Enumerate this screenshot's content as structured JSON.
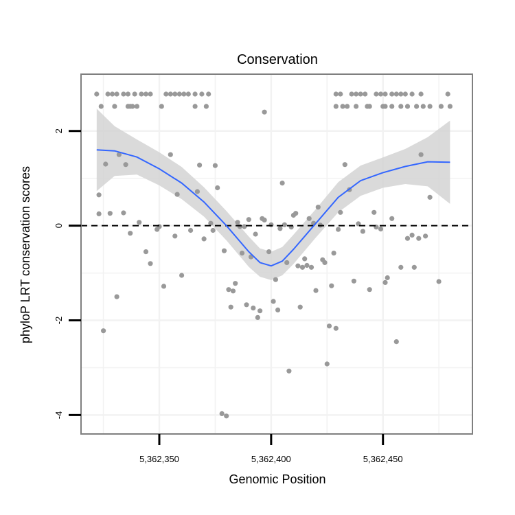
{
  "chart_data": {
    "type": "scatter",
    "title": "Conservation",
    "xlabel": "Genomic Position",
    "ylabel": "phyloP LRT conservation scores",
    "xlim": [
      5362315,
      5362490
    ],
    "ylim": [
      -4.4,
      3.2
    ],
    "x_ticks": [
      5362350,
      5362400,
      5362450
    ],
    "x_tick_labels": [
      "5,362,350",
      "5,362,400",
      "5,362,450"
    ],
    "y_ticks": [
      -4,
      -2,
      0,
      2
    ],
    "y_tick_labels": [
      "-4",
      "-2",
      "0",
      "2"
    ],
    "x_minor_grid": [
      5362325,
      5362375,
      5362425,
      5362475
    ],
    "y_minor_grid": [
      -3,
      -1,
      1
    ],
    "grid": true,
    "reference_line": {
      "y": 0,
      "style": "dashed",
      "color": "#000000"
    },
    "colors": {
      "points": "#999999",
      "smooth_line": "#3366ff",
      "ribbon": "#d4d4d4",
      "panel_border": "#7f7f7f",
      "grid": "#f2f2f2"
    },
    "series": [
      {
        "type": "scatter",
        "points": [
          [
            5362322,
            2.78
          ],
          [
            5362327,
            2.78
          ],
          [
            5362329,
            2.78
          ],
          [
            5362331,
            2.78
          ],
          [
            5362334,
            2.78
          ],
          [
            5362336,
            2.78
          ],
          [
            5362339,
            2.78
          ],
          [
            5362342,
            2.78
          ],
          [
            5362344,
            2.78
          ],
          [
            5362346,
            2.78
          ],
          [
            5362353,
            2.78
          ],
          [
            5362355,
            2.78
          ],
          [
            5362357,
            2.78
          ],
          [
            5362359,
            2.78
          ],
          [
            5362361,
            2.78
          ],
          [
            5362363,
            2.78
          ],
          [
            5362366,
            2.78
          ],
          [
            5362369,
            2.78
          ],
          [
            5362372,
            2.78
          ],
          [
            5362324,
            2.52
          ],
          [
            5362330,
            2.52
          ],
          [
            5362336,
            2.52
          ],
          [
            5362337,
            2.52
          ],
          [
            5362338,
            2.52
          ],
          [
            5362340,
            2.52
          ],
          [
            5362351,
            2.52
          ],
          [
            5362366,
            2.52
          ],
          [
            5362371,
            2.52
          ],
          [
            5362429,
            2.78
          ],
          [
            5362431,
            2.78
          ],
          [
            5362436,
            2.78
          ],
          [
            5362438,
            2.78
          ],
          [
            5362440,
            2.78
          ],
          [
            5362442,
            2.78
          ],
          [
            5362447,
            2.78
          ],
          [
            5362449,
            2.78
          ],
          [
            5362451,
            2.78
          ],
          [
            5362454,
            2.78
          ],
          [
            5362456,
            2.78
          ],
          [
            5362458,
            2.78
          ],
          [
            5362460,
            2.78
          ],
          [
            5362463,
            2.78
          ],
          [
            5362467,
            2.78
          ],
          [
            5362479,
            2.78
          ],
          [
            5362429,
            2.52
          ],
          [
            5362432,
            2.52
          ],
          [
            5362434,
            2.52
          ],
          [
            5362438,
            2.52
          ],
          [
            5362443,
            2.52
          ],
          [
            5362444,
            2.52
          ],
          [
            5362450,
            2.52
          ],
          [
            5362451,
            2.52
          ],
          [
            5362454,
            2.52
          ],
          [
            5362458,
            2.52
          ],
          [
            5362461,
            2.52
          ],
          [
            5362465,
            2.52
          ],
          [
            5362468,
            2.52
          ],
          [
            5362471,
            2.52
          ],
          [
            5362476,
            2.52
          ],
          [
            5362480,
            2.52
          ],
          [
            5362397,
            2.4
          ],
          [
            5362323,
            0.65
          ],
          [
            5362323,
            0.25
          ],
          [
            5362325,
            -2.22
          ],
          [
            5362326,
            1.3
          ],
          [
            5362328,
            0.26
          ],
          [
            5362331,
            -1.5
          ],
          [
            5362332,
            1.5
          ],
          [
            5362334,
            0.27
          ],
          [
            5362335,
            1.29
          ],
          [
            5362337,
            -0.16
          ],
          [
            5362341,
            0.07
          ],
          [
            5362344,
            -0.55
          ],
          [
            5362346,
            -0.8
          ],
          [
            5362349,
            -0.08
          ],
          [
            5362350,
            -0.02
          ],
          [
            5362352,
            -1.28
          ],
          [
            5362355,
            1.5
          ],
          [
            5362357,
            -0.22
          ],
          [
            5362358,
            0.66
          ],
          [
            5362360,
            -1.05
          ],
          [
            5362364,
            -0.1
          ],
          [
            5362367,
            0.72
          ],
          [
            5362368,
            1.28
          ],
          [
            5362370,
            -0.28
          ],
          [
            5362373,
            0.05
          ],
          [
            5362374,
            -0.1
          ],
          [
            5362375,
            1.27
          ],
          [
            5362376,
            0.8
          ],
          [
            5362378,
            -3.97
          ],
          [
            5362379,
            -0.53
          ],
          [
            5362380,
            -4.02
          ],
          [
            5362381,
            -1.35
          ],
          [
            5362382,
            -1.72
          ],
          [
            5362383,
            -1.38
          ],
          [
            5362384,
            -1.22
          ],
          [
            5362385,
            0.07
          ],
          [
            5362386,
            -0.02
          ],
          [
            5362387,
            -0.58
          ],
          [
            5362388,
            -0.02
          ],
          [
            5362389,
            -1.67
          ],
          [
            5362390,
            0.13
          ],
          [
            5362391,
            -0.66
          ],
          [
            5362392,
            -1.74
          ],
          [
            5362393,
            -0.18
          ],
          [
            5362394,
            -1.94
          ],
          [
            5362395,
            -1.8
          ],
          [
            5362396,
            0.15
          ],
          [
            5362397,
            0.12
          ],
          [
            5362399,
            -0.55
          ],
          [
            5362400,
            0.02
          ],
          [
            5362401,
            -1.6
          ],
          [
            5362402,
            -1.14
          ],
          [
            5362403,
            -1.78
          ],
          [
            5362404,
            -0.06
          ],
          [
            5362405,
            0.9
          ],
          [
            5362406,
            0.02
          ],
          [
            5362407,
            -0.78
          ],
          [
            5362408,
            -3.07
          ],
          [
            5362409,
            -0.03
          ],
          [
            5362410,
            0.22
          ],
          [
            5362411,
            0.26
          ],
          [
            5362412,
            -0.85
          ],
          [
            5362413,
            -1.72
          ],
          [
            5362414,
            -0.88
          ],
          [
            5362415,
            -0.7
          ],
          [
            5362416,
            -0.84
          ],
          [
            5362417,
            0.15
          ],
          [
            5362418,
            -0.88
          ],
          [
            5362419,
            0.05
          ],
          [
            5362420,
            -1.37
          ],
          [
            5362421,
            0.39
          ],
          [
            5362422,
            0.01
          ],
          [
            5362423,
            -0.72
          ],
          [
            5362424,
            -0.78
          ],
          [
            5362425,
            -2.92
          ],
          [
            5362426,
            -2.12
          ],
          [
            5362427,
            -1.27
          ],
          [
            5362428,
            -0.58
          ],
          [
            5362429,
            -2.17
          ],
          [
            5362430,
            -0.08
          ],
          [
            5362431,
            0.28
          ],
          [
            5362433,
            1.29
          ],
          [
            5362435,
            0.76
          ],
          [
            5362437,
            -1.17
          ],
          [
            5362439,
            0.04
          ],
          [
            5362441,
            -0.12
          ],
          [
            5362444,
            -1.35
          ],
          [
            5362446,
            0.28
          ],
          [
            5362447,
            -0.03
          ],
          [
            5362449,
            -0.07
          ],
          [
            5362451,
            -1.2
          ],
          [
            5362452,
            -1.1
          ],
          [
            5362454,
            0.15
          ],
          [
            5362456,
            -2.45
          ],
          [
            5362458,
            -0.88
          ],
          [
            5362461,
            -0.27
          ],
          [
            5362463,
            -0.2
          ],
          [
            5362464,
            -0.88
          ],
          [
            5362466,
            -0.27
          ],
          [
            5362467,
            1.5
          ],
          [
            5362469,
            -0.22
          ],
          [
            5362471,
            0.6
          ],
          [
            5362475,
            -1.18
          ]
        ]
      },
      {
        "type": "smooth",
        "x": [
          5362322,
          5362330,
          5362340,
          5362350,
          5362360,
          5362370,
          5362380,
          5362390,
          5362395,
          5362400,
          5362405,
          5362410,
          5362420,
          5362430,
          5362440,
          5362450,
          5362460,
          5362470,
          5362480
        ],
        "y": [
          1.6,
          1.58,
          1.45,
          1.2,
          0.9,
          0.5,
          0.0,
          -0.55,
          -0.78,
          -0.85,
          -0.75,
          -0.5,
          0.05,
          0.6,
          0.95,
          1.12,
          1.25,
          1.35,
          1.34
        ],
        "lower": [
          0.73,
          1.05,
          1.08,
          0.85,
          0.56,
          0.19,
          -0.31,
          -0.87,
          -1.08,
          -1.15,
          -1.05,
          -0.81,
          -0.25,
          0.28,
          0.63,
          0.8,
          0.88,
          0.83,
          0.46
        ],
        "upper": [
          2.47,
          2.1,
          1.82,
          1.55,
          1.24,
          0.81,
          0.31,
          -0.23,
          -0.48,
          -0.55,
          -0.45,
          -0.19,
          0.35,
          0.92,
          1.27,
          1.44,
          1.62,
          1.87,
          2.22
        ]
      }
    ]
  }
}
